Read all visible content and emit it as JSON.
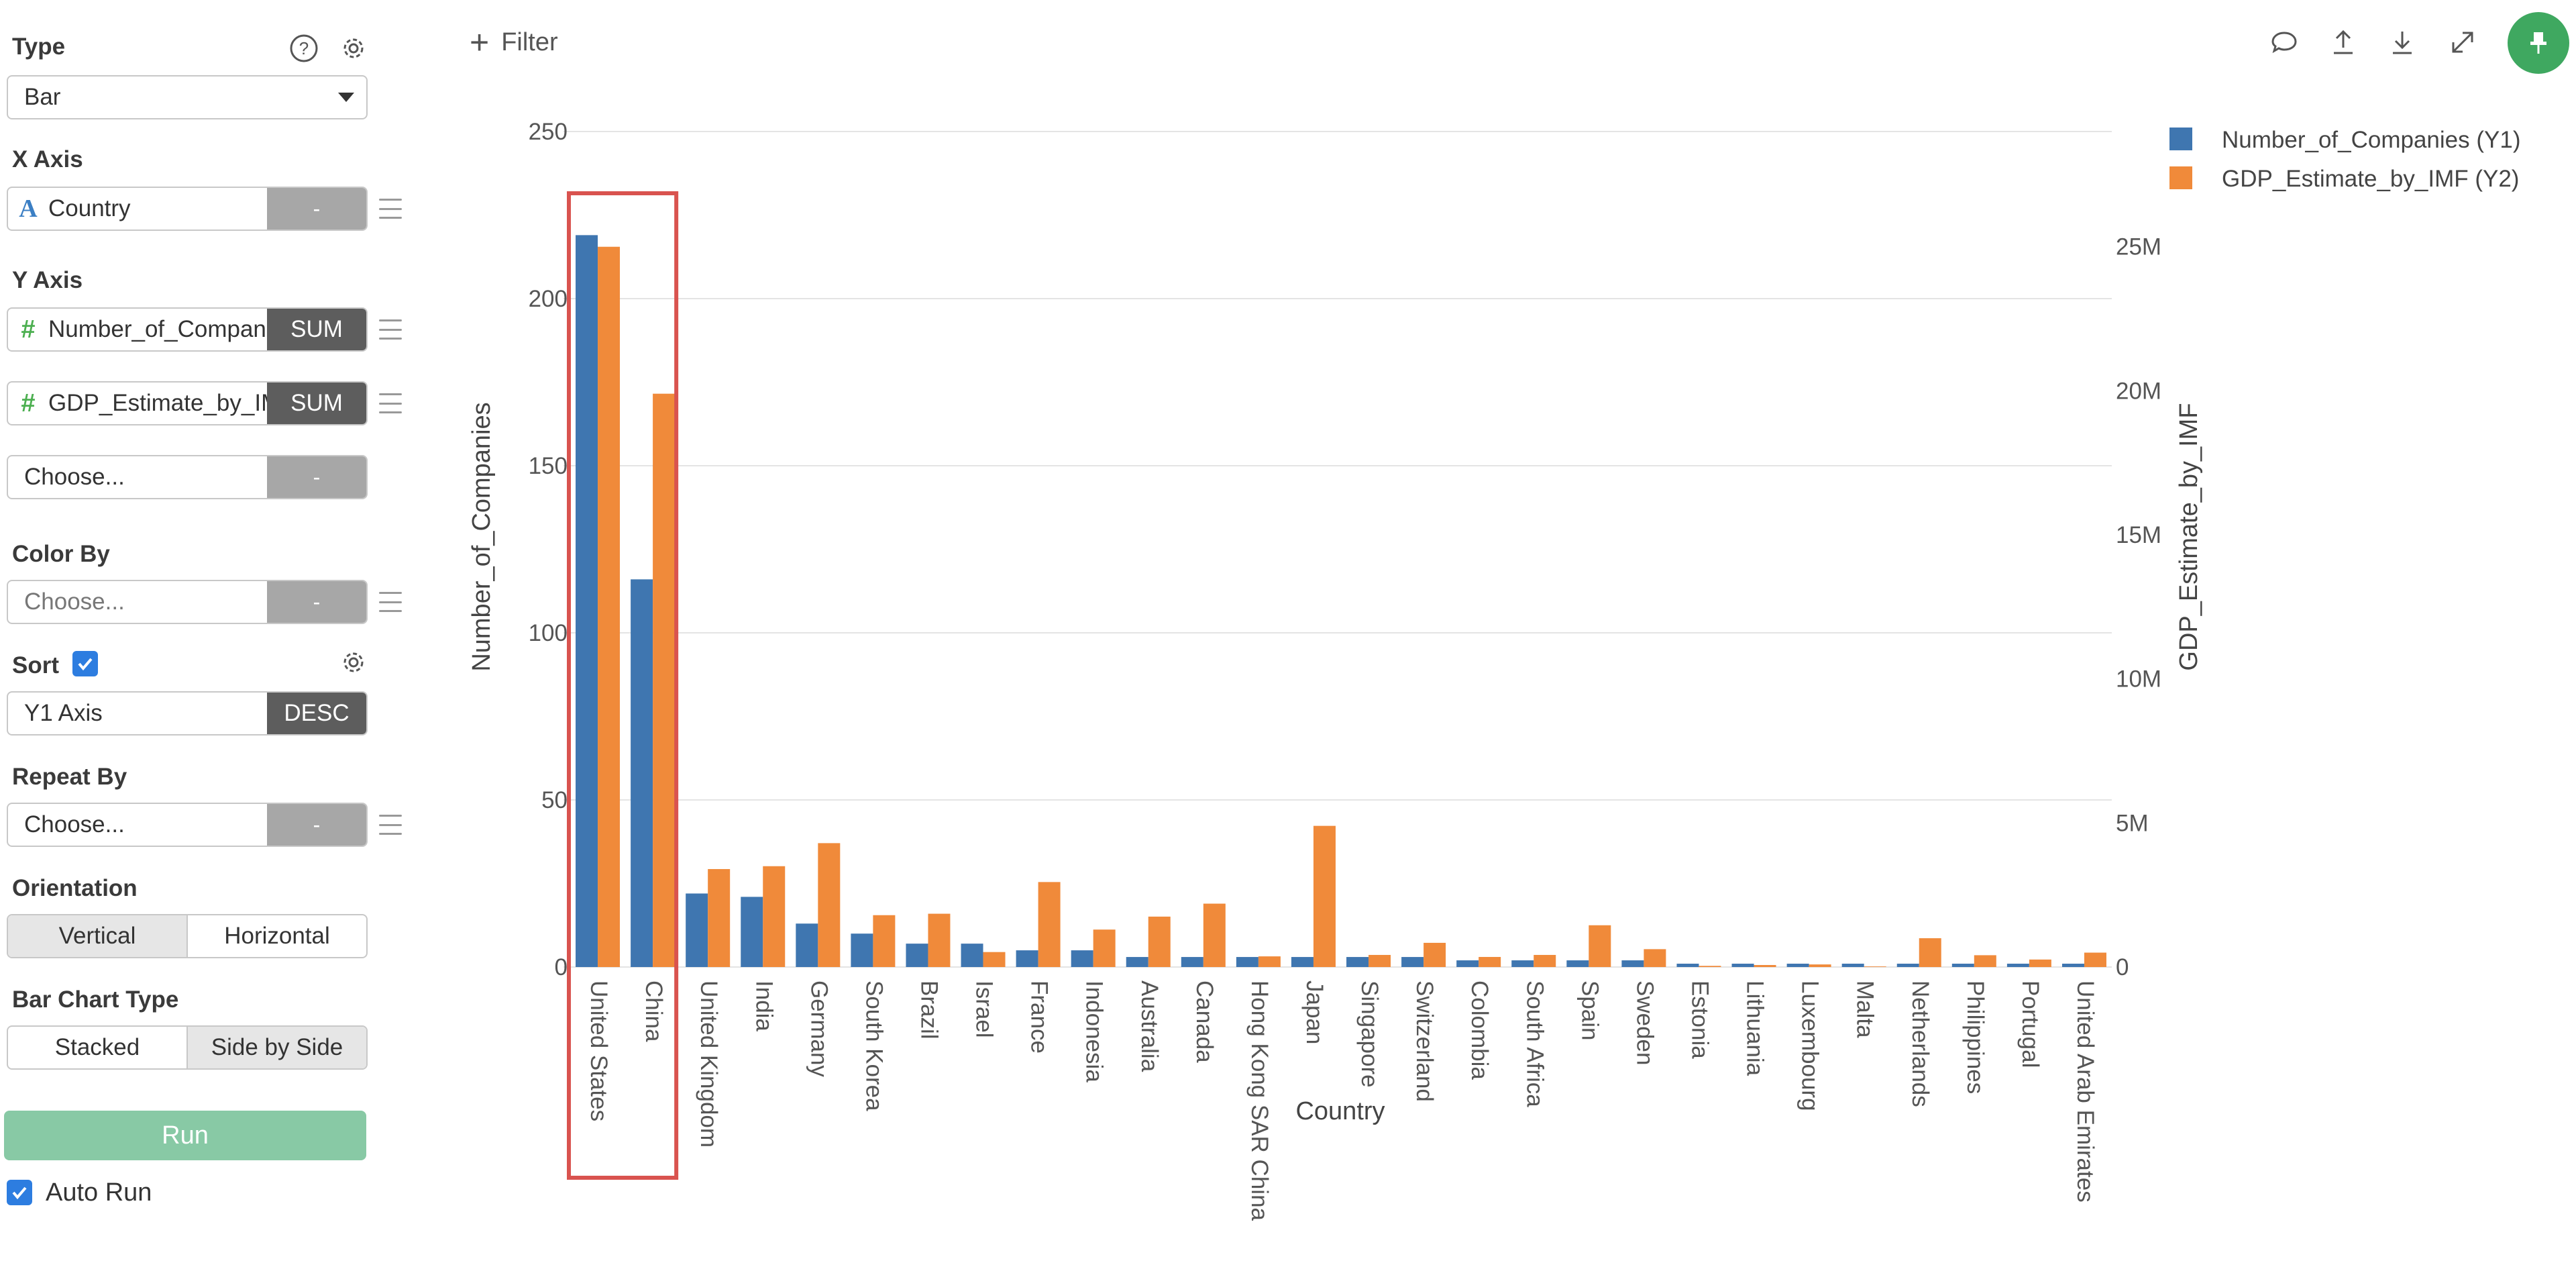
{
  "sidebar": {
    "type": {
      "label": "Type",
      "value": "Bar"
    },
    "x_axis": {
      "label": "X Axis",
      "field": "Country",
      "field_icon": "A",
      "button": "-"
    },
    "y_axis": {
      "label": "Y Axis",
      "fields": [
        {
          "name": "Number_of_Companies",
          "icon": "#",
          "agg": "SUM"
        },
        {
          "name": "GDP_Estimate_by_IMF",
          "icon": "#",
          "agg": "SUM"
        }
      ],
      "choose": {
        "placeholder": "Choose...",
        "button": "-"
      }
    },
    "color_by": {
      "label": "Color By",
      "placeholder": "Choose...",
      "button": "-"
    },
    "sort": {
      "label": "Sort",
      "checked": true,
      "field": "Y1 Axis",
      "order": "DESC"
    },
    "repeat_by": {
      "label": "Repeat By",
      "placeholder": "Choose...",
      "button": "-"
    },
    "orientation": {
      "label": "Orientation",
      "options": [
        "Vertical",
        "Horizontal"
      ],
      "selected": "Vertical"
    },
    "bar_chart_type": {
      "label": "Bar Chart Type",
      "options": [
        "Stacked",
        "Side by Side"
      ],
      "selected": "Side by Side"
    },
    "run_label": "Run",
    "auto_run": {
      "label": "Auto Run",
      "checked": true
    }
  },
  "toolbar": {
    "filter_label": "Filter",
    "icons": [
      "comment-icon",
      "upload-icon",
      "download-icon",
      "expand-icon",
      "pin-icon"
    ]
  },
  "colors": {
    "series1": "#3f76b0",
    "series2": "#f08a3a",
    "highlight": "#d9534f",
    "run": "#88c9a5",
    "pin": "#3fa860"
  },
  "chart_data": {
    "type": "bar",
    "xlabel": "Country",
    "ylabel": "Number_of_Companies",
    "y2label": "GDP_Estimate_by_IMF",
    "ylim": [
      0,
      250
    ],
    "y2lim": [
      0,
      29000000
    ],
    "yticks": [
      "0",
      "50",
      "100",
      "150",
      "200",
      "250"
    ],
    "y2ticks": [
      {
        "label": "0",
        "value": 0
      },
      {
        "label": "5M",
        "value": 5000000
      },
      {
        "label": "10M",
        "value": 10000000
      },
      {
        "label": "15M",
        "value": 15000000
      },
      {
        "label": "20M",
        "value": 20000000
      },
      {
        "label": "25M",
        "value": 25000000
      }
    ],
    "legend_position": "top-right",
    "highlighted_categories": [
      "United States",
      "China"
    ],
    "categories": [
      "United States",
      "China",
      "United Kingdom",
      "India",
      "Germany",
      "South Korea",
      "Brazil",
      "Israel",
      "France",
      "Indonesia",
      "Australia",
      "Canada",
      "Hong Kong SAR China",
      "Japan",
      "Singapore",
      "Switzerland",
      "Colombia",
      "South Africa",
      "Spain",
      "Sweden",
      "Estonia",
      "Lithuania",
      "Luxembourg",
      "Malta",
      "Netherlands",
      "Philippines",
      "Portugal",
      "United Arab Emirates"
    ],
    "series": [
      {
        "name": "Number_of_Companies (Y1)",
        "axis": "y1",
        "values": [
          219,
          116,
          22,
          21,
          13,
          10,
          7,
          7,
          5,
          5,
          3,
          3,
          3,
          3,
          3,
          3,
          2,
          2,
          2,
          2,
          1,
          1,
          1,
          1,
          1,
          1,
          1,
          1
        ]
      },
      {
        "name": "GDP_Estimate_by_IMF (Y2)",
        "axis": "y2",
        "values": [
          25000000,
          19900000,
          3400000,
          3500000,
          4300000,
          1800000,
          1850000,
          520000,
          2950000,
          1300000,
          1750000,
          2200000,
          370000,
          4900000,
          420000,
          840000,
          350000,
          420000,
          1450000,
          620000,
          40000,
          70000,
          90000,
          20000,
          1000000,
          410000,
          260000,
          500000
        ]
      }
    ]
  }
}
